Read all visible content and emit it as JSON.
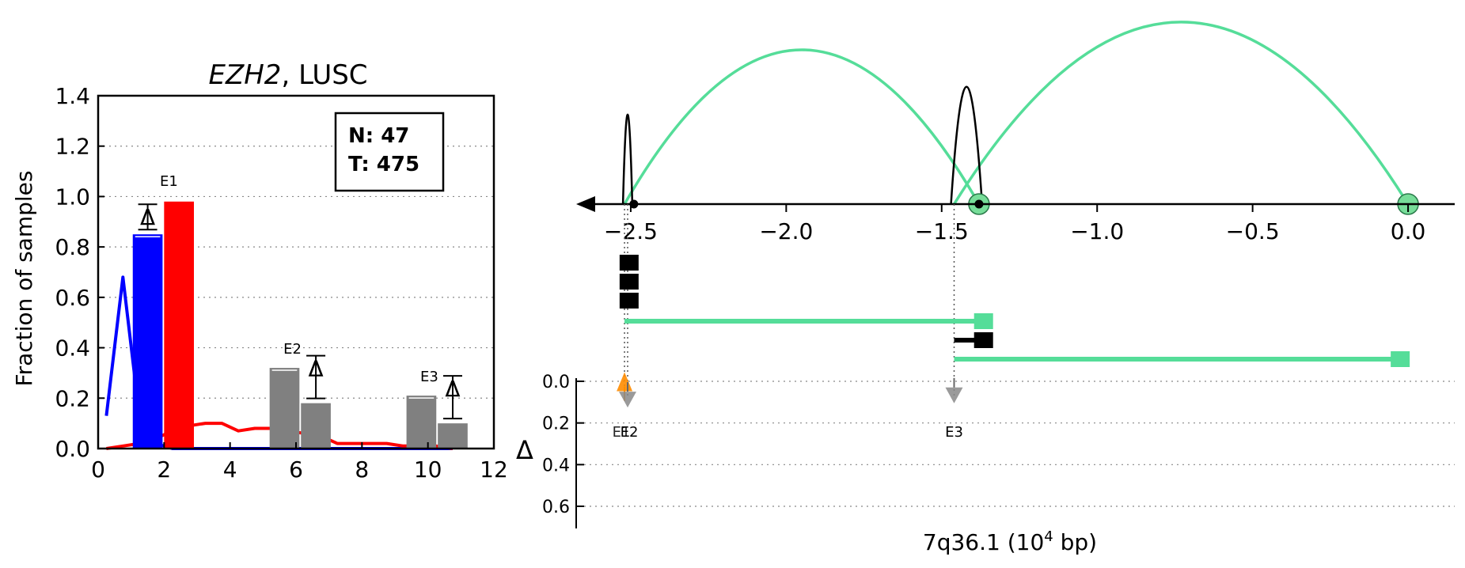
{
  "chart_data": [
    {
      "type": "bar",
      "title_gene": "EZH2",
      "title_rest": ", LUSC",
      "ylabel": "Fraction of samples",
      "xlim": [
        0,
        12
      ],
      "ylim": [
        0,
        1.4
      ],
      "xticks": [
        "0",
        "2",
        "4",
        "6",
        "8",
        "10",
        "12"
      ],
      "yticks": [
        "0.0",
        "0.2",
        "0.4",
        "0.6",
        "0.8",
        "1.0",
        "1.2",
        "1.4"
      ],
      "grid": "horizontal dotted",
      "legend": {
        "placement": "top-right",
        "line1": "N: 47",
        "line2": "T: 475"
      },
      "bars": [
        {
          "label": "E1",
          "normal": 0.85,
          "tumor": 0.98,
          "delta_label": "Δ",
          "normal_color": "#0000ff",
          "tumor_color": "#ff0000"
        },
        {
          "label": "E2",
          "normal": 0.32,
          "tumor": 0.18,
          "delta_label": "Δ",
          "color": "#808080"
        },
        {
          "label": "E3",
          "normal": 0.21,
          "tumor": 0.1,
          "delta_label": "Δ",
          "color": "#808080"
        }
      ],
      "series": [
        {
          "color": "#0000ff",
          "x": [
            0.25,
            0.75,
            1.25,
            1.75,
            2.25,
            2.75,
            3.25,
            3.75,
            4.25,
            4.75,
            5.25,
            5.75,
            6.25,
            6.75,
            7.25,
            7.75,
            8.25,
            8.75,
            9.25,
            9.75,
            10.25,
            10.75
          ],
          "y": [
            0.13,
            0.68,
            0.13,
            0.02,
            0.0,
            0.0,
            0.0,
            0.0,
            0.0,
            0.0,
            0.0,
            0.0,
            0.0,
            0.0,
            0.0,
            0.0,
            0.0,
            0.0,
            0.0,
            0.0,
            0.0,
            0.0
          ]
        },
        {
          "color": "#ff0000",
          "x": [
            0.25,
            0.75,
            1.25,
            1.75,
            2.25,
            2.75,
            3.25,
            3.75,
            4.25,
            4.75,
            5.25,
            5.75,
            6.25,
            6.75,
            7.25,
            7.75,
            8.25,
            8.75,
            9.25,
            9.75,
            10.25,
            10.75
          ],
          "y": [
            0.0,
            0.01,
            0.02,
            0.04,
            0.07,
            0.09,
            0.1,
            0.1,
            0.07,
            0.08,
            0.08,
            0.07,
            0.06,
            0.05,
            0.02,
            0.02,
            0.02,
            0.02,
            0.01,
            0.01,
            0.01,
            0.0
          ]
        }
      ]
    },
    {
      "type": "genomic-track",
      "xlabel": "7q36.1 (10",
      "xlabel_sup": "4",
      "xlabel_end": " bp)",
      "xlim": [
        -2.65,
        0.15
      ],
      "xticks": [
        -2.5,
        -2.0,
        -1.5,
        -1.0,
        -0.5,
        0.0
      ],
      "xtick_labels": [
        "−2.5",
        "−2.0",
        "−1.5",
        "−1.0",
        "−0.5",
        "0.0"
      ],
      "arc_color": "#55dd99",
      "arcs_green": [
        {
          "from": -2.52,
          "to": -1.38,
          "height": 1.0
        },
        {
          "from": -1.46,
          "to": 0.0,
          "height": 1.18
        }
      ],
      "peaks_black": [
        {
          "center": -2.51,
          "width": 0.03,
          "height": 0.58
        },
        {
          "center": -1.42,
          "width": 0.1,
          "height": 0.76
        }
      ],
      "transcripts": [
        {
          "start": -2.52,
          "end": -2.49,
          "color": "#000000",
          "row": 0
        },
        {
          "start": -2.52,
          "end": -2.49,
          "color": "#000000",
          "row": 1
        },
        {
          "start": -2.52,
          "end": -2.49,
          "color": "#000000",
          "row": 2
        },
        {
          "start": -2.52,
          "end": -1.35,
          "color": "#55dd99",
          "row": 3
        },
        {
          "start": -1.46,
          "end": -1.35,
          "color": "#000000",
          "row": 4
        },
        {
          "start": -1.46,
          "end": -0.01,
          "color": "#55dd99",
          "row": 5
        }
      ],
      "delta_panel": {
        "ylabel": "Δ",
        "ylim": [
          0,
          0.7
        ],
        "yticks": [
          "0.0",
          "0.2",
          "0.4",
          "0.6"
        ],
        "markers": [
          {
            "x": -2.52,
            "delta": 0.04,
            "label": "E1",
            "color": "#ff8c00"
          },
          {
            "x": -2.51,
            "delta": 0.08,
            "label": "E2",
            "color": "#777777"
          },
          {
            "x": -1.46,
            "delta": 0.06,
            "label": "E3",
            "color": "#777777"
          }
        ]
      }
    }
  ]
}
